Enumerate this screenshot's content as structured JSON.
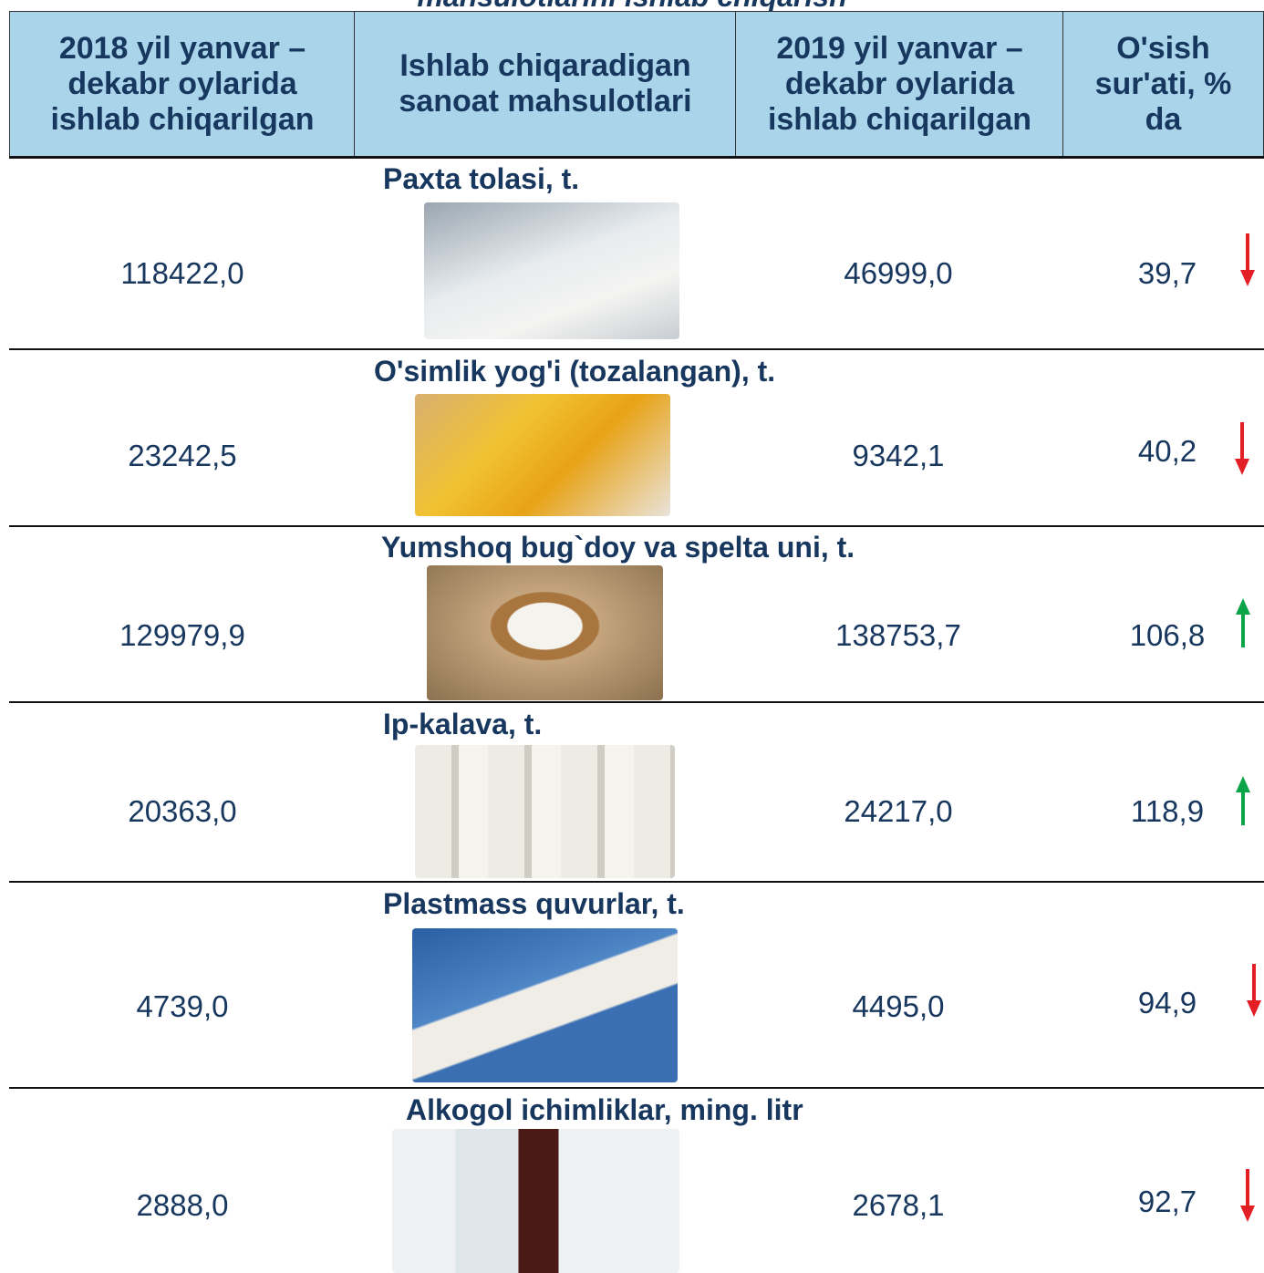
{
  "header": {
    "title": "mahsulotlarini ishlab chiqarish"
  },
  "table": {
    "columns": [
      "2018 yil yanvar – dekabr oylarida ishlab chiqarilgan",
      "Ishlab chiqaradigan sanoat mahsulotlari",
      "2019 yil yanvar – dekabr oylarida ishlab chiqarilgan",
      "O'sish sur'ati, % da"
    ],
    "rows": [
      {
        "product": "Paxta tolasi, t.",
        "y2018": "118422,0",
        "y2019": "46999,0",
        "growth": "39,7"
      },
      {
        "product": "O'simlik yog'i (tozalangan), t.",
        "y2018": "23242,5",
        "y2019": "9342,1",
        "growth": "40,2"
      },
      {
        "product": "Yumshoq bug`doy va spelta uni, t.",
        "y2018": "129979,9",
        "y2019": "138753,7",
        "growth": "106,8"
      },
      {
        "product": "Ip-kalava, t.",
        "y2018": "20363,0",
        "y2019": "24217,0",
        "growth": "118,9"
      },
      {
        "product": "Plastmass quvurlar, t.",
        "y2018": "4739,0",
        "y2019": "4495,0",
        "growth": "94,9"
      },
      {
        "product": "Alkogol ichimliklar, ming. litr",
        "y2018": "2888,0",
        "y2019": "2678,1",
        "growth": "92,7"
      }
    ]
  }
}
